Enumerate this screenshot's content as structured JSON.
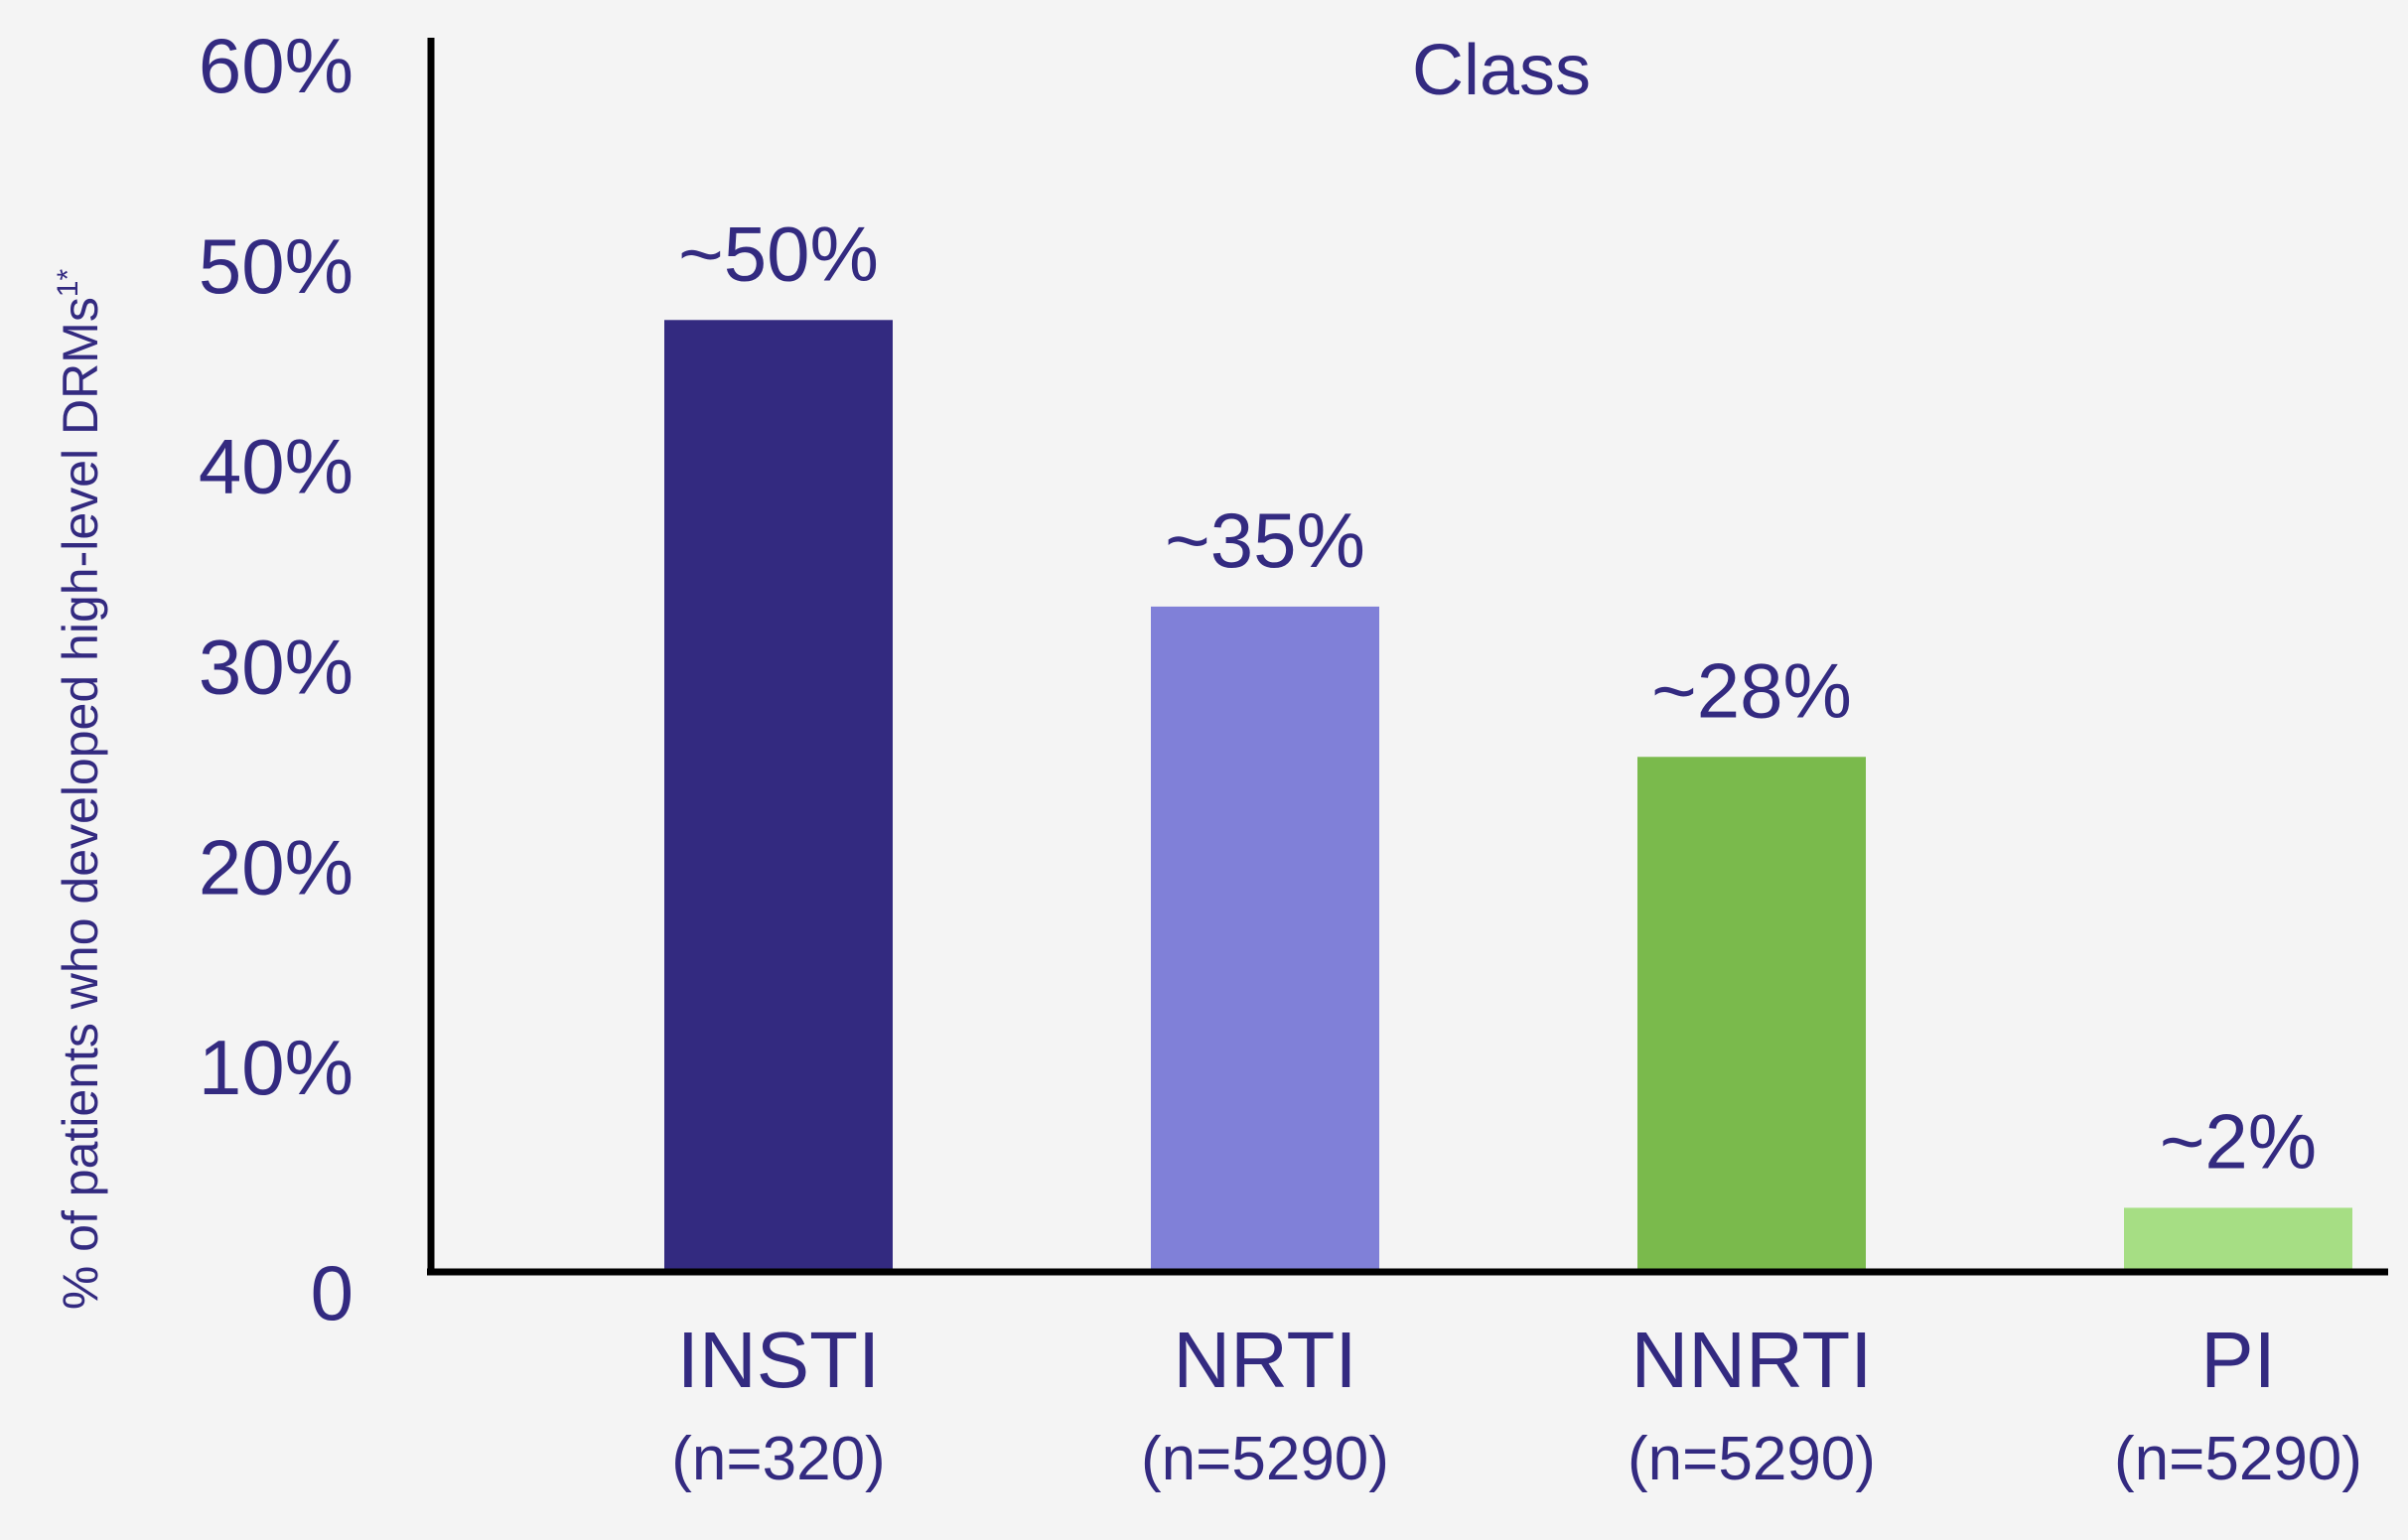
{
  "chart_data": {
    "type": "bar",
    "title": "Class",
    "ylabel": "% of patients who developed high-level DRMs",
    "ylabel_superscript": "1*",
    "ylim": [
      0,
      60
    ],
    "yticks": [
      {
        "value": 0,
        "label": "0"
      },
      {
        "value": 10,
        "label": "10%"
      },
      {
        "value": 20,
        "label": "20%"
      },
      {
        "value": 30,
        "label": "30%"
      },
      {
        "value": 40,
        "label": "40%"
      },
      {
        "value": 50,
        "label": "50%"
      },
      {
        "value": 60,
        "label": "60%"
      }
    ],
    "categories": [
      "INSTI",
      "NRTI",
      "NNRTI",
      "PI"
    ],
    "category_sublabels": [
      "(n=320)",
      "(n=5290)",
      "(n=5290)",
      "(n=5290)"
    ],
    "values": [
      47.5,
      33.2,
      25.7,
      3.2
    ],
    "data_labels": [
      "~50%",
      "~35%",
      "~28%",
      "~2%"
    ],
    "colors": [
      "#332a80",
      "#8080d8",
      "#7aba4c",
      "#a6de84"
    ],
    "text_color": "#332a80",
    "axis_color": "#000000",
    "grid": false,
    "legend": "none"
  }
}
